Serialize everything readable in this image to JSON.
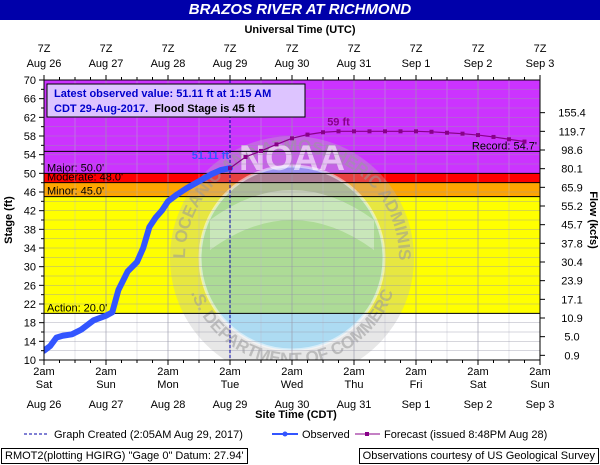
{
  "title": "BRAZOS RIVER AT RICHMOND",
  "top_axis_title": "Universal Time (UTC)",
  "bottom_axis_title": "Site Time (CDT)",
  "left_axis_title": "Stage (ft)",
  "right_axis_title": "Flow (kcfs)",
  "top_ticks": [
    {
      "line1": "7Z",
      "line2": "Aug 26"
    },
    {
      "line1": "7Z",
      "line2": "Aug 27"
    },
    {
      "line1": "7Z",
      "line2": "Aug 28"
    },
    {
      "line1": "7Z",
      "line2": "Aug 29"
    },
    {
      "line1": "7Z",
      "line2": "Aug 30"
    },
    {
      "line1": "7Z",
      "line2": "Aug 31"
    },
    {
      "line1": "7Z",
      "line2": "Sep  1"
    },
    {
      "line1": "7Z",
      "line2": "Sep  2"
    },
    {
      "line1": "7Z",
      "line2": "Sep  3"
    }
  ],
  "bottom_ticks": [
    {
      "line1": "2am",
      "line2": "Sat",
      "line3": "Aug 26"
    },
    {
      "line1": "2am",
      "line2": "Sun",
      "line3": "Aug 27"
    },
    {
      "line1": "2am",
      "line2": "Mon",
      "line3": "Aug 28"
    },
    {
      "line1": "2am",
      "line2": "Tue",
      "line3": "Aug 29"
    },
    {
      "line1": "2am",
      "line2": "Wed",
      "line3": "Aug 30"
    },
    {
      "line1": "2am",
      "line2": "Thu",
      "line3": "Aug 31"
    },
    {
      "line1": "2am",
      "line2": "Fri",
      "line3": "Sep 1"
    },
    {
      "line1": "2am",
      "line2": "Sat",
      "line3": "Sep 2"
    },
    {
      "line1": "2am",
      "line2": "Sun",
      "line3": "Sep 3"
    }
  ],
  "stage_ticks": [
    "10",
    "14",
    "18",
    "22",
    "26",
    "30",
    "34",
    "38",
    "42",
    "46",
    "50",
    "54",
    "58",
    "62",
    "66",
    "70"
  ],
  "stage_minor_ticks": [
    "12",
    "16",
    "20",
    "24",
    "28",
    "32",
    "36",
    "40",
    "44",
    "48",
    "52",
    "56",
    "60",
    "64",
    "68"
  ],
  "flow_ticks": [
    {
      "stage": 11,
      "label": "0.9"
    },
    {
      "stage": 15,
      "label": "5.0"
    },
    {
      "stage": 19,
      "label": "10.9"
    },
    {
      "stage": 23,
      "label": "17.1"
    },
    {
      "stage": 27,
      "label": "23.9"
    },
    {
      "stage": 31,
      "label": "30.4"
    },
    {
      "stage": 35,
      "label": "37.8"
    },
    {
      "stage": 39,
      "label": "45.7"
    },
    {
      "stage": 43,
      "label": "55.2"
    },
    {
      "stage": 47,
      "label": "65.9"
    },
    {
      "stage": 51,
      "label": "80.1"
    },
    {
      "stage": 55,
      "label": "98.6"
    },
    {
      "stage": 59,
      "label": "119.7"
    },
    {
      "stage": 63,
      "label": "155.4"
    }
  ],
  "stage_bands": [
    {
      "from": 10,
      "to": 20,
      "color": "#ffffff"
    },
    {
      "from": 20,
      "to": 45,
      "color": "#ffff00"
    },
    {
      "from": 45,
      "to": 48,
      "color": "#ffa500"
    },
    {
      "from": 48,
      "to": 50,
      "color": "#ff0000"
    },
    {
      "from": 50,
      "to": 70,
      "color": "#cc33ff"
    }
  ],
  "thresholds": [
    {
      "label": "Major: 50.0'",
      "stage": 50
    },
    {
      "label": "Moderate: 48.0'",
      "stage": 48
    },
    {
      "label": "Minor: 45.0'",
      "stage": 45
    },
    {
      "label": "Action: 20.0'",
      "stage": 20
    },
    {
      "label": "Record: 54.7'",
      "stage": 54.7
    }
  ],
  "chart_data": {
    "type": "line",
    "title": "BRAZOS RIVER AT RICHMOND",
    "xlabel": "Site Time (CDT)",
    "ylabel": "Stage (ft)",
    "y2label": "Flow (kcfs)",
    "x_unit": "days since 2am CDT Aug 26",
    "xlim": [
      0,
      8
    ],
    "ylim": [
      10,
      70
    ],
    "series": [
      {
        "name": "Observed",
        "color": "#3355ff",
        "x": [
          0,
          0.1,
          0.2,
          0.3,
          0.45,
          0.6,
          0.8,
          1.0,
          1.1,
          1.2,
          1.35,
          1.5,
          1.6,
          1.7,
          1.8,
          1.9,
          2.0,
          2.15,
          2.3,
          2.5,
          2.7,
          2.85,
          3.0
        ],
        "y": [
          12,
          13,
          14.8,
          15.2,
          15.5,
          16.5,
          18.5,
          19.5,
          20.2,
          25,
          29,
          31,
          34,
          38.5,
          40.5,
          42,
          44,
          45.5,
          46.8,
          48.3,
          49.8,
          50.7,
          51.11
        ]
      },
      {
        "name": "Forecast (issued 8:48PM Aug 28)",
        "color": "#880088",
        "x": [
          3.0,
          3.25,
          3.5,
          3.75,
          4.0,
          4.25,
          4.5,
          4.75,
          5.0,
          5.25,
          5.5,
          5.75,
          6.0,
          6.25,
          6.5,
          6.75,
          7.0,
          7.25,
          7.5,
          7.75
        ],
        "y": [
          51.11,
          53.5,
          54.8,
          56.2,
          57.5,
          58.3,
          58.8,
          59,
          59,
          59,
          59,
          59,
          59,
          58.9,
          58.7,
          58.5,
          58.2,
          57.8,
          57.3,
          56.8
        ]
      }
    ],
    "annotations": [
      {
        "text": "51.11 ft",
        "x": 3.0,
        "y": 51.11
      },
      {
        "text": "59 ft",
        "x": 4.75,
        "y": 59
      }
    ],
    "grid": true
  },
  "info_box": {
    "line1": "Latest observed value: 51.11 ft at 1:15 AM",
    "line2a": "CDT 29-Aug-2017.",
    "line2b": "Flood Stage is 45 ft"
  },
  "legend": {
    "created": "Graph Created (2:05AM Aug 29, 2017)",
    "observed": "Observed",
    "forecast": "Forecast (issued 8:48PM Aug 28)"
  },
  "footer": {
    "left": "RMOT2(plotting HGIRG) \"Gage 0\" Datum: 27.94'",
    "right": "Observations courtesy of US Geological Survey"
  },
  "watermark": {
    "top_text": "NATIONAL OCEANIC AND ATMOSPHERIC ADMINISTRATION",
    "bottom_text": "U.S. DEPARTMENT OF COMMERCE",
    "center_text": "NOAA"
  },
  "colors": {
    "title_bg": "#0000aa",
    "observed": "#3355ff",
    "forecast": "#880088"
  }
}
